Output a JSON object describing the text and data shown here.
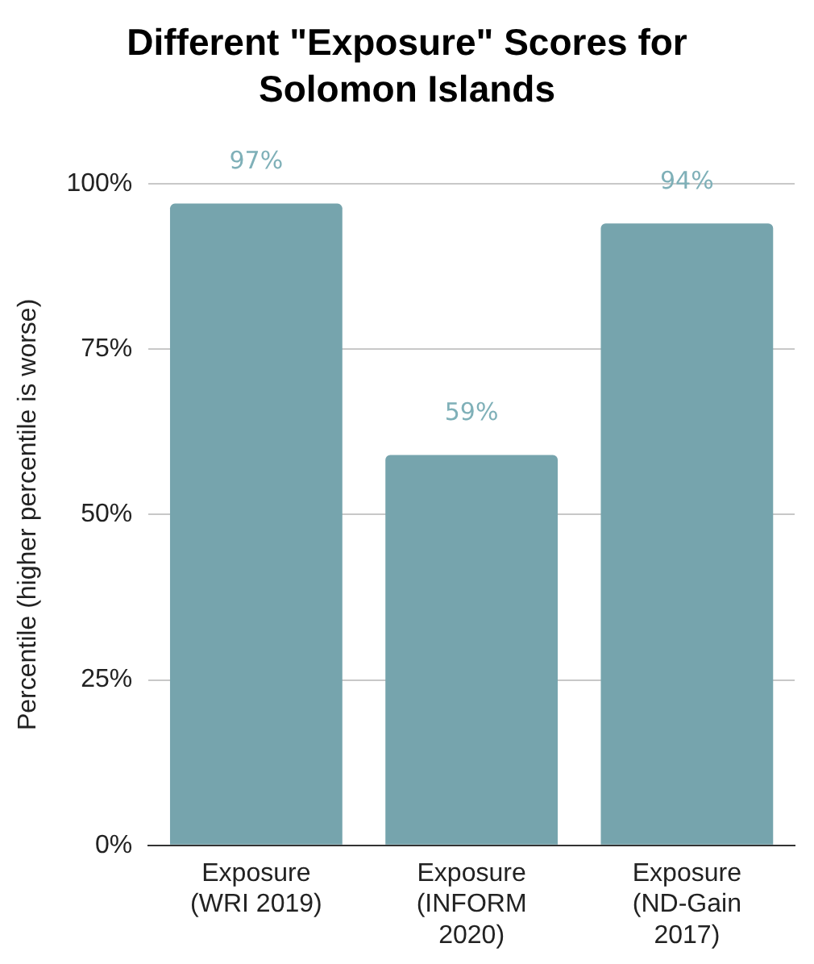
{
  "chart_data": {
    "type": "bar",
    "title": "Different \"Exposure\" Scores for Solomon Islands",
    "ylabel": "Percentile (higher percentile is worse)",
    "categories": [
      "Exposure (WRI 2019)",
      "Exposure (INFORM 2020)",
      "Exposure (ND-Gain 2017)"
    ],
    "values": [
      97,
      59,
      94
    ],
    "color": "#76a4ad",
    "value_labels": [
      "97%",
      "59%",
      "94%"
    ],
    "ylim": [
      0,
      100
    ],
    "yticks": [
      {
        "value": 0,
        "label": "0%"
      },
      {
        "value": 25,
        "label": "25%"
      },
      {
        "value": 50,
        "label": "50%"
      },
      {
        "value": 75,
        "label": "75%"
      },
      {
        "value": 100,
        "label": "100%"
      }
    ],
    "grid": "y",
    "legend": false
  }
}
